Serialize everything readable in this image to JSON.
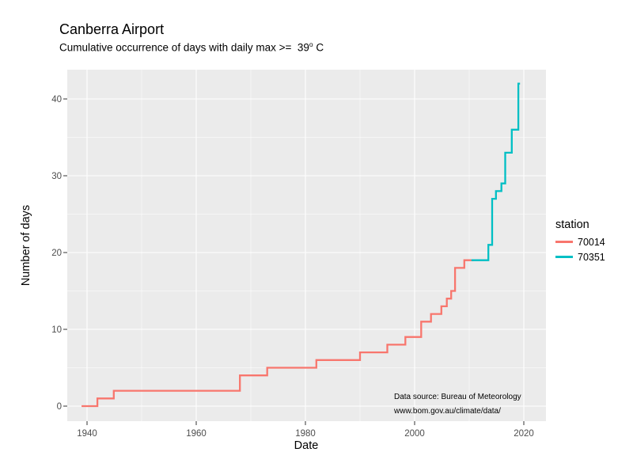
{
  "header": {
    "title": "Canberra Airport",
    "subtitle_text": "Cumulative occurrence of days with daily max >=  39",
    "subtitle_degree": "o",
    "subtitle_unit": " C"
  },
  "annotation": {
    "line1": "Data source: Bureau of Meteorology",
    "line2": "www.bom.gov.au/climate/data/"
  },
  "legend": {
    "title": "station",
    "entries": [
      {
        "label": "70014",
        "color": "#F8766D"
      },
      {
        "label": "70351",
        "color": "#00BFC4"
      }
    ]
  },
  "chart_data": {
    "type": "line",
    "subtype": "step",
    "title": "Canberra Airport",
    "subtitle": "Cumulative occurrence of days with daily max >= 39° C",
    "xlabel": "Date",
    "ylabel": "Number of days",
    "x_ticks": [
      1940,
      1960,
      1980,
      2000,
      2020
    ],
    "x_minor_ticks": [
      1950,
      1970,
      1990,
      2010
    ],
    "y_ticks": [
      0,
      10,
      20,
      30,
      40
    ],
    "y_minor_ticks": [
      5,
      15,
      25,
      35
    ],
    "xlim": [
      1936.4,
      2023.6
    ],
    "ylim": [
      -2,
      44
    ],
    "grid": true,
    "panel_background": "#EBEBEB",
    "grid_color": "#FFFFFF",
    "tick_color": "#333333",
    "legend_title": "station",
    "legend_position": "right",
    "annotation": [
      "Data source: Bureau of Meteorology",
      "www.bom.gov.au/climate/data/"
    ],
    "series": [
      {
        "name": "70014",
        "color": "#F8766D",
        "points": [
          [
            1939,
            0
          ],
          [
            1941.9,
            1
          ],
          [
            1944.9,
            2
          ],
          [
            1968,
            4
          ],
          [
            1973,
            5
          ],
          [
            1982,
            6
          ],
          [
            1990,
            7
          ],
          [
            1995,
            8
          ],
          [
            1998.3,
            9
          ],
          [
            2001.2,
            11
          ],
          [
            2003,
            12
          ],
          [
            2004.9,
            13
          ],
          [
            2005.9,
            14
          ],
          [
            2006.7,
            15
          ],
          [
            2007.4,
            18
          ],
          [
            2009.1,
            19
          ]
        ],
        "end_x": 2010.8
      },
      {
        "name": "70351",
        "color": "#00BFC4",
        "points": [
          [
            2010.4,
            19
          ],
          [
            2013.5,
            21
          ],
          [
            2014.2,
            27
          ],
          [
            2014.9,
            28
          ],
          [
            2015.9,
            29
          ],
          [
            2016.6,
            33
          ],
          [
            2017.8,
            36
          ],
          [
            2019,
            42
          ]
        ],
        "end_x": 2019.3
      }
    ]
  }
}
